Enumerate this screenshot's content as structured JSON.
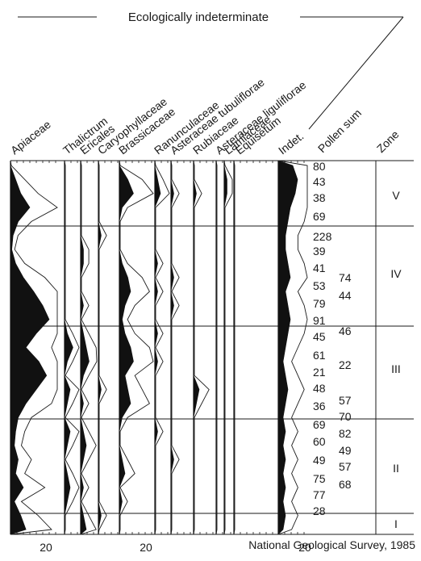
{
  "chart_data": {
    "type": "area",
    "title": "",
    "group_label": "Ecologically indeterminate",
    "source": "National Geological Survey, 1985",
    "taxa": [
      "Apiaceae",
      "Thalictrum",
      "Ericales",
      "Caryophyllaceae",
      "Brassicaceae",
      "Ranunculaceae",
      "Asteraceae tubuliflorae",
      "Rubiaceae",
      "Asteraceae liguliflorae",
      "Lamiaceae",
      "Equisetum",
      "Indet."
    ],
    "pollen_sum_header": "Pollen sum",
    "zone_header": "Zone",
    "scale_labels": [
      "20",
      "20",
      "20"
    ],
    "samples": 27,
    "pollen_sum_main": [
      "80",
      "43",
      "38",
      "69",
      "228",
      "39",
      "41",
      "53",
      "79",
      "91",
      "45",
      "61",
      "21",
      "48",
      "36",
      "69",
      "60",
      "49",
      "75",
      "77",
      "28"
    ],
    "pollen_sum_secondary": [
      "74",
      "44",
      "46",
      "22",
      "57",
      "70",
      "82",
      "49",
      "57",
      "68"
    ],
    "zones": [
      "V",
      "IV",
      "III",
      "II",
      "I"
    ],
    "series": [
      {
        "name": "Apiaceae",
        "values": [
          0,
          4,
          8,
          15,
          6,
          2,
          1,
          4,
          10,
          18,
          25,
          30,
          20,
          12,
          22,
          28,
          20,
          12,
          6,
          4,
          3,
          6,
          4,
          10,
          3,
          8,
          12
        ]
      },
      {
        "name": "Thalictrum",
        "values": [
          0,
          0,
          0,
          0,
          0,
          0,
          0,
          0,
          0,
          0,
          0,
          0,
          1,
          3,
          1,
          0,
          2,
          1,
          0,
          2,
          1,
          0,
          1,
          2,
          1,
          0,
          0
        ]
      },
      {
        "name": "Ericales",
        "values": [
          0,
          0,
          0,
          0,
          0,
          0,
          1,
          1,
          0,
          0,
          1,
          0,
          1,
          2,
          3,
          1,
          0,
          1,
          0,
          1,
          2,
          1,
          0,
          1,
          0,
          1,
          2
        ]
      },
      {
        "name": "Caryophyllaceae",
        "values": [
          0,
          0,
          0,
          0,
          0,
          1,
          0,
          0,
          0,
          0,
          0,
          0,
          0,
          0,
          0,
          0,
          1,
          0,
          0,
          0,
          0,
          0,
          0,
          0,
          0,
          1,
          0
        ]
      },
      {
        "name": "Brassicaceae",
        "values": [
          0,
          3,
          5,
          1,
          0,
          0,
          0,
          1,
          3,
          4,
          2,
          1,
          2,
          4,
          5,
          2,
          3,
          4,
          1,
          0,
          0,
          1,
          2,
          0,
          1,
          0,
          0
        ]
      },
      {
        "name": "Ranunculaceae",
        "values": [
          0,
          1,
          2,
          0,
          0,
          0,
          0,
          1,
          0,
          1,
          0,
          0,
          1,
          0,
          1,
          0,
          0,
          0,
          0,
          1,
          0,
          0,
          0,
          0,
          0,
          0,
          0
        ]
      },
      {
        "name": "Asteraceae tubuliflorae",
        "values": [
          0,
          0,
          1,
          0,
          0,
          0,
          0,
          0,
          1,
          0,
          1,
          0,
          0,
          0,
          0,
          0,
          0,
          0,
          0,
          0,
          0,
          1,
          0,
          0,
          0,
          0,
          0
        ]
      },
      {
        "name": "Rubiaceae",
        "values": [
          0,
          0,
          1,
          0,
          0,
          0,
          0,
          0,
          0,
          0,
          0,
          0,
          0,
          0,
          0,
          0,
          2,
          1,
          0,
          0,
          0,
          0,
          0,
          0,
          0,
          0,
          0
        ]
      },
      {
        "name": "Asteraceae liguliflorae",
        "values": [
          0,
          0,
          0,
          0,
          0,
          0,
          0,
          0,
          0,
          0,
          0,
          0,
          0,
          0,
          0,
          0,
          0,
          0,
          0,
          0,
          0,
          0,
          0,
          0,
          0,
          0,
          0
        ]
      },
      {
        "name": "Lamiaceae",
        "values": [
          0,
          1,
          1,
          0,
          0,
          0,
          0,
          0,
          0,
          0,
          0,
          0,
          0,
          0,
          0,
          0,
          0,
          0,
          0,
          0,
          0,
          0,
          0,
          0,
          0,
          0,
          0
        ]
      },
      {
        "name": "Equisetum",
        "values": [
          0,
          0,
          0,
          0,
          0,
          0,
          0,
          0,
          0,
          0,
          0,
          0,
          0,
          0,
          0,
          0,
          0,
          0,
          0,
          0,
          0,
          0,
          0,
          0,
          0,
          0,
          0
        ]
      },
      {
        "name": "Indet.",
        "values": [
          6,
          8,
          7,
          5,
          4,
          3,
          3,
          4,
          5,
          3,
          4,
          5,
          4,
          3,
          2,
          3,
          4,
          3,
          2,
          3,
          2,
          3,
          2,
          3,
          2,
          3,
          2
        ]
      }
    ]
  }
}
